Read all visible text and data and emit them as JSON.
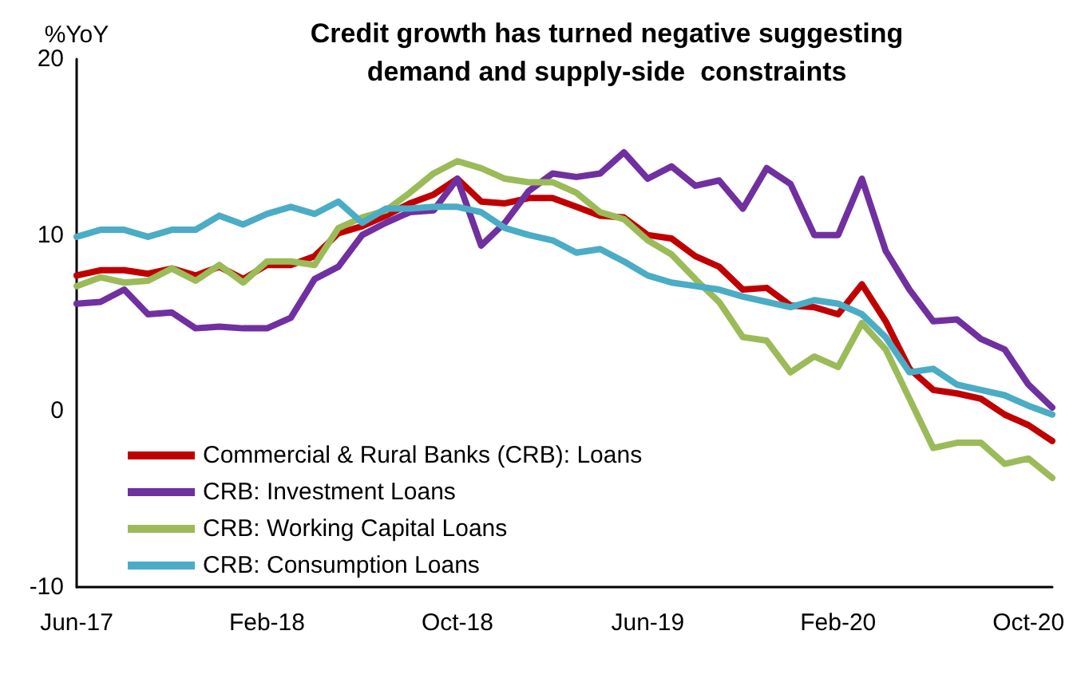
{
  "chart_data": {
    "type": "line",
    "title": "Credit growth has turned negative suggesting\ndemand and supply-side  constraints",
    "ylabel": "%YoY",
    "categories": [
      "Jun-17",
      null,
      null,
      null,
      null,
      null,
      null,
      null,
      "Feb-18",
      null,
      null,
      null,
      null,
      null,
      null,
      null,
      "Oct-18",
      null,
      null,
      null,
      null,
      null,
      null,
      null,
      "Jun-19",
      null,
      null,
      null,
      null,
      null,
      null,
      null,
      "Feb-20",
      null,
      null,
      null,
      null,
      null,
      null,
      null,
      "Oct-20",
      null
    ],
    "series": [
      {
        "name": "Commercial & Rural Banks (CRB): Loans",
        "color": "#c00000",
        "values": [
          7.7,
          8.0,
          8.0,
          7.8,
          8.1,
          7.7,
          8.2,
          7.5,
          8.3,
          8.3,
          8.8,
          10.1,
          10.5,
          11.1,
          11.8,
          12.3,
          13.2,
          11.9,
          11.8,
          12.1,
          12.1,
          11.6,
          11.1,
          11.0,
          10.0,
          9.8,
          8.8,
          8.2,
          6.9,
          7.0,
          6.0,
          5.9,
          5.5,
          7.2,
          5.1,
          2.4,
          1.2,
          1.0,
          0.7,
          -0.2,
          -0.8,
          -1.7
        ]
      },
      {
        "name": "CRB: Investment Loans",
        "color": "#7030a0",
        "values": [
          6.1,
          6.2,
          6.9,
          5.5,
          5.6,
          4.7,
          4.8,
          4.7,
          4.7,
          5.3,
          7.5,
          8.2,
          10.0,
          10.7,
          11.3,
          11.4,
          13.2,
          9.4,
          10.7,
          12.5,
          13.5,
          13.3,
          13.5,
          14.7,
          13.2,
          13.9,
          12.8,
          13.1,
          11.5,
          13.8,
          12.9,
          10.0,
          10.0,
          13.2,
          9.1,
          6.9,
          5.1,
          5.2,
          4.1,
          3.5,
          1.5,
          0.2
        ]
      },
      {
        "name": "CRB: Working Capital Loans",
        "color": "#9bbb59",
        "values": [
          7.1,
          7.6,
          7.3,
          7.4,
          8.1,
          7.4,
          8.3,
          7.3,
          8.5,
          8.5,
          8.3,
          10.4,
          11.0,
          11.4,
          12.4,
          13.5,
          14.2,
          13.8,
          13.2,
          13.0,
          13.0,
          12.4,
          11.3,
          10.9,
          9.7,
          8.9,
          7.5,
          6.2,
          4.2,
          4.0,
          2.2,
          3.1,
          2.5,
          5.0,
          3.5,
          0.7,
          -2.1,
          -1.8,
          -1.8,
          -3.0,
          -2.7,
          -3.8
        ]
      },
      {
        "name": "CRB: Consumption Loans",
        "color": "#4bacc6",
        "values": [
          9.9,
          10.3,
          10.3,
          9.9,
          10.3,
          10.3,
          11.1,
          10.6,
          11.2,
          11.6,
          11.2,
          11.9,
          10.7,
          11.5,
          11.5,
          11.6,
          11.6,
          11.3,
          10.4,
          10.0,
          9.7,
          9.0,
          9.2,
          8.5,
          7.7,
          7.3,
          7.1,
          6.9,
          6.5,
          6.2,
          5.9,
          6.3,
          6.1,
          5.5,
          4.2,
          2.2,
          2.4,
          1.5,
          1.2,
          0.9,
          0.3,
          -0.2
        ]
      }
    ],
    "ylim": [
      -10,
      20
    ],
    "yticks": [
      -10,
      0,
      10,
      20
    ],
    "grid": false,
    "legend": "bottom left",
    "marker": "none",
    "line_style": "solid"
  }
}
